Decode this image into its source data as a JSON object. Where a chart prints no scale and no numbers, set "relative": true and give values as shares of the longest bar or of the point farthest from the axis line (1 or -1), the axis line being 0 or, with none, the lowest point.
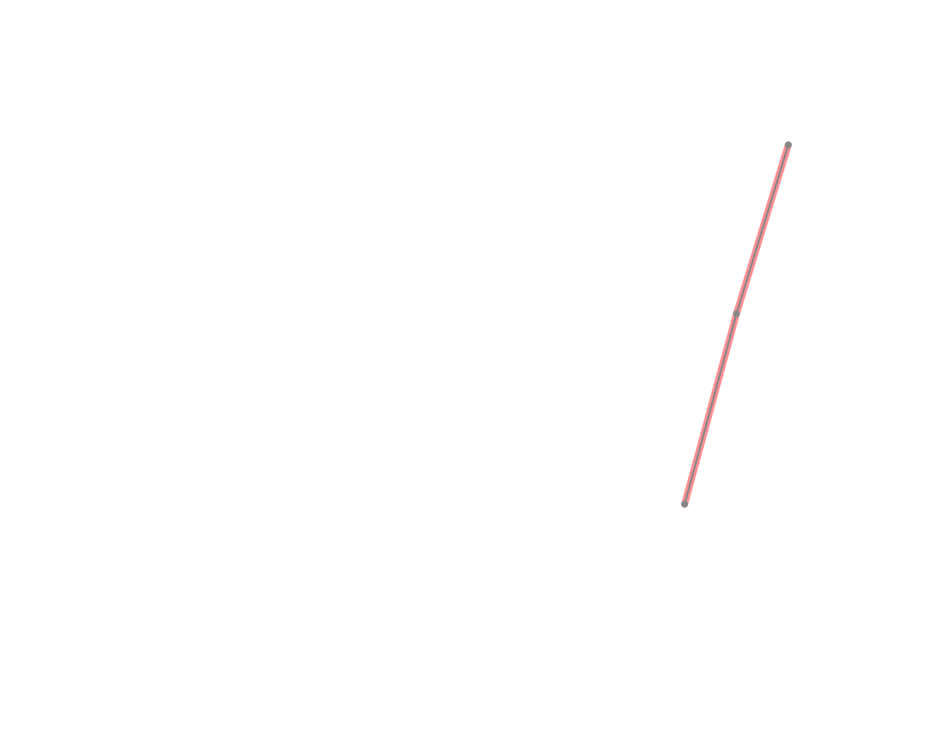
{
  "chart_data": {
    "type": "line",
    "relative": true,
    "categories": [
      null,
      null,
      null
    ],
    "series": [
      {
        "color": "#ff8f94",
        "values": [
          0,
          0.53,
          1
        ]
      }
    ],
    "marker": "circle",
    "line_style": "solid",
    "legend": false,
    "tick_labels": false
  }
}
